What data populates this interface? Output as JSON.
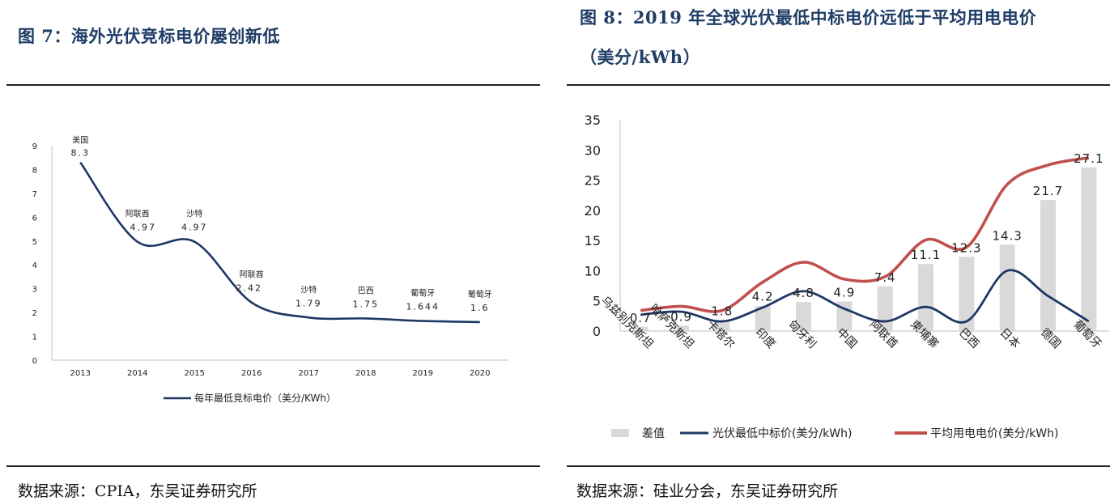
{
  "left": {
    "title": "图 7：海外光伏竞标电价屡创新低",
    "source": "数据来源：CPIA，东吴证券研究所",
    "chart_data": {
      "type": "line",
      "x": [
        "2013",
        "2014",
        "2015",
        "2016",
        "2017",
        "2018",
        "2019",
        "2020"
      ],
      "series": [
        {
          "name": "每年最低竞标电价（美分/KWh）",
          "values": [
            8.3,
            4.97,
            4.97,
            2.42,
            1.79,
            1.75,
            1.644,
            1.6
          ]
        }
      ],
      "point_country_labels": [
        "美国",
        "阿联酋",
        "沙特",
        "阿联酋",
        "沙特",
        "巴西",
        "葡萄牙",
        "葡萄牙"
      ],
      "point_value_labels": [
        "8.3",
        "4.97",
        "4.97",
        "2.42",
        "1.79",
        "1.75",
        "1.644",
        "1.6"
      ],
      "y_ticks": [
        "0",
        "1",
        "2",
        "3",
        "4",
        "5",
        "6",
        "7",
        "8",
        "9"
      ],
      "ylim": [
        0,
        9
      ],
      "legend_position": "bottom",
      "line_color": "#1f3864"
    }
  },
  "right": {
    "title_line1": "图 8：2019 年全球光伏最低中标电价远低于平均用电电价",
    "title_line2": "（美分/kWh）",
    "source": "数据来源：硅业分会，东吴证券研究所",
    "chart_data": {
      "type": "bar",
      "categories": [
        "乌兹别克斯坦",
        "哈萨克斯坦",
        "卡塔尔",
        "印度",
        "匈牙利",
        "中国",
        "阿联酋",
        "柬埔寨",
        "巴西",
        "日本",
        "德国",
        "葡萄牙"
      ],
      "series": [
        {
          "name": "差值",
          "type": "bar",
          "values": [
            0.7,
            0.9,
            1.8,
            4.2,
            4.8,
            4.9,
            7.4,
            11.1,
            12.3,
            14.3,
            21.7,
            27.1
          ],
          "color": "#d9d9d9"
        },
        {
          "name": "光伏最低中标价(美分/kWh)",
          "type": "line",
          "values": [
            2.7,
            3.2,
            1.6,
            3.9,
            6.6,
            3.7,
            1.6,
            4.0,
            1.6,
            10.0,
            5.8,
            1.6
          ],
          "color": "#1f3864"
        },
        {
          "name": "平均用电电价(美分/kWh)",
          "type": "line",
          "values": [
            3.4,
            4.1,
            3.4,
            8.1,
            11.4,
            8.6,
            9.0,
            15.1,
            13.9,
            24.3,
            27.5,
            28.7
          ],
          "color": "#c0504d"
        }
      ],
      "data_labels": [
        "0.7",
        "0.9",
        "1.8",
        "4.2",
        "4.8",
        "4.9",
        "7.4",
        "11.1",
        "12.3",
        "14.3",
        "21.7",
        "27.1"
      ],
      "y_ticks": [
        "0",
        "5",
        "10",
        "15",
        "20",
        "25",
        "30",
        "35"
      ],
      "ylim": [
        0,
        35
      ],
      "legend_position": "bottom"
    }
  }
}
